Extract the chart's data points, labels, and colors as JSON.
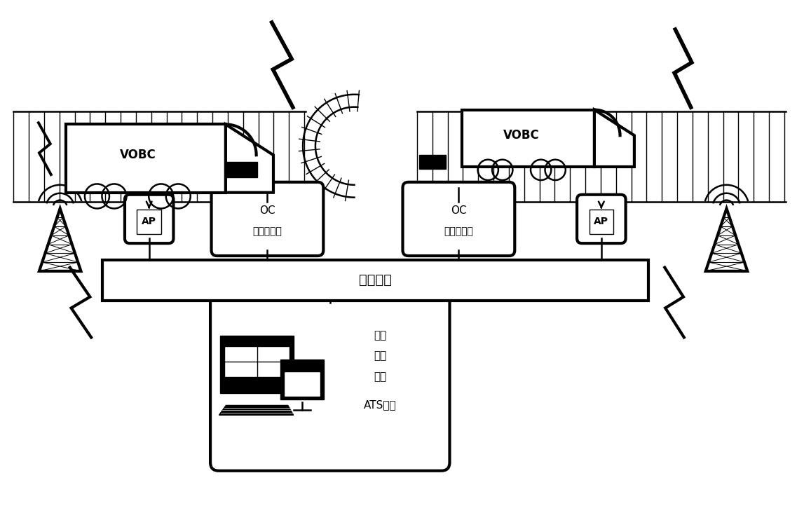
{
  "bg_color": "#ffffff",
  "line_color": "#000000",
  "fig_width": 11.47,
  "fig_height": 7.42,
  "vobc1_label": "VOBC",
  "vobc2_label": "VOBC",
  "oc1_label": "OC\n目标控制器",
  "oc2_label": "OC\n目标控制器",
  "ap_label": "AP",
  "backbone_label": "骨干网络",
  "cc_line1": "控制",
  "cc_line2": "中心",
  "cc_line3": "设备",
  "cc_line4": "ATS系统"
}
